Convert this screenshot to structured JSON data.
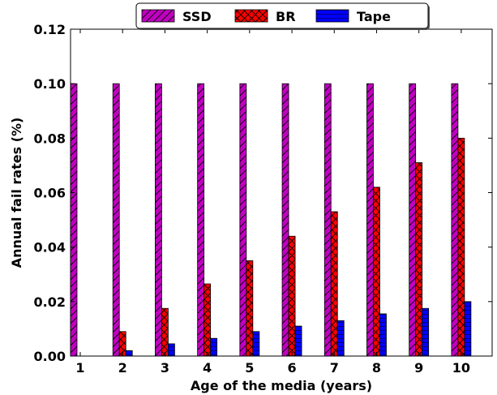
{
  "chart_data": {
    "type": "bar",
    "categories": [
      "1",
      "2",
      "3",
      "4",
      "5",
      "6",
      "7",
      "8",
      "9",
      "10"
    ],
    "series": [
      {
        "name": "SSD",
        "color": "#c000c0",
        "hatch": "diagonal",
        "values": [
          0.1,
          0.1,
          0.1,
          0.1,
          0.1,
          0.1,
          0.1,
          0.1,
          0.1,
          0.1
        ]
      },
      {
        "name": "BR",
        "color": "#ff0000",
        "hatch": "crosshatch",
        "values": [
          0.0,
          0.009,
          0.0175,
          0.0265,
          0.035,
          0.044,
          0.053,
          0.062,
          0.071,
          0.08
        ]
      },
      {
        "name": "Tape",
        "color": "#0000ff",
        "hatch": "horizontal",
        "values": [
          0.0,
          0.002,
          0.0045,
          0.0065,
          0.009,
          0.011,
          0.013,
          0.0155,
          0.0175,
          0.02
        ]
      }
    ],
    "xlabel": "Age of the media (years)",
    "ylabel": "Annual fail rates (%)",
    "ylim": [
      0,
      0.12
    ],
    "yticks": [
      "0.00",
      "0.02",
      "0.04",
      "0.06",
      "0.08",
      "0.10",
      "0.12"
    ],
    "grid": false,
    "legend_position": "top-center"
  }
}
